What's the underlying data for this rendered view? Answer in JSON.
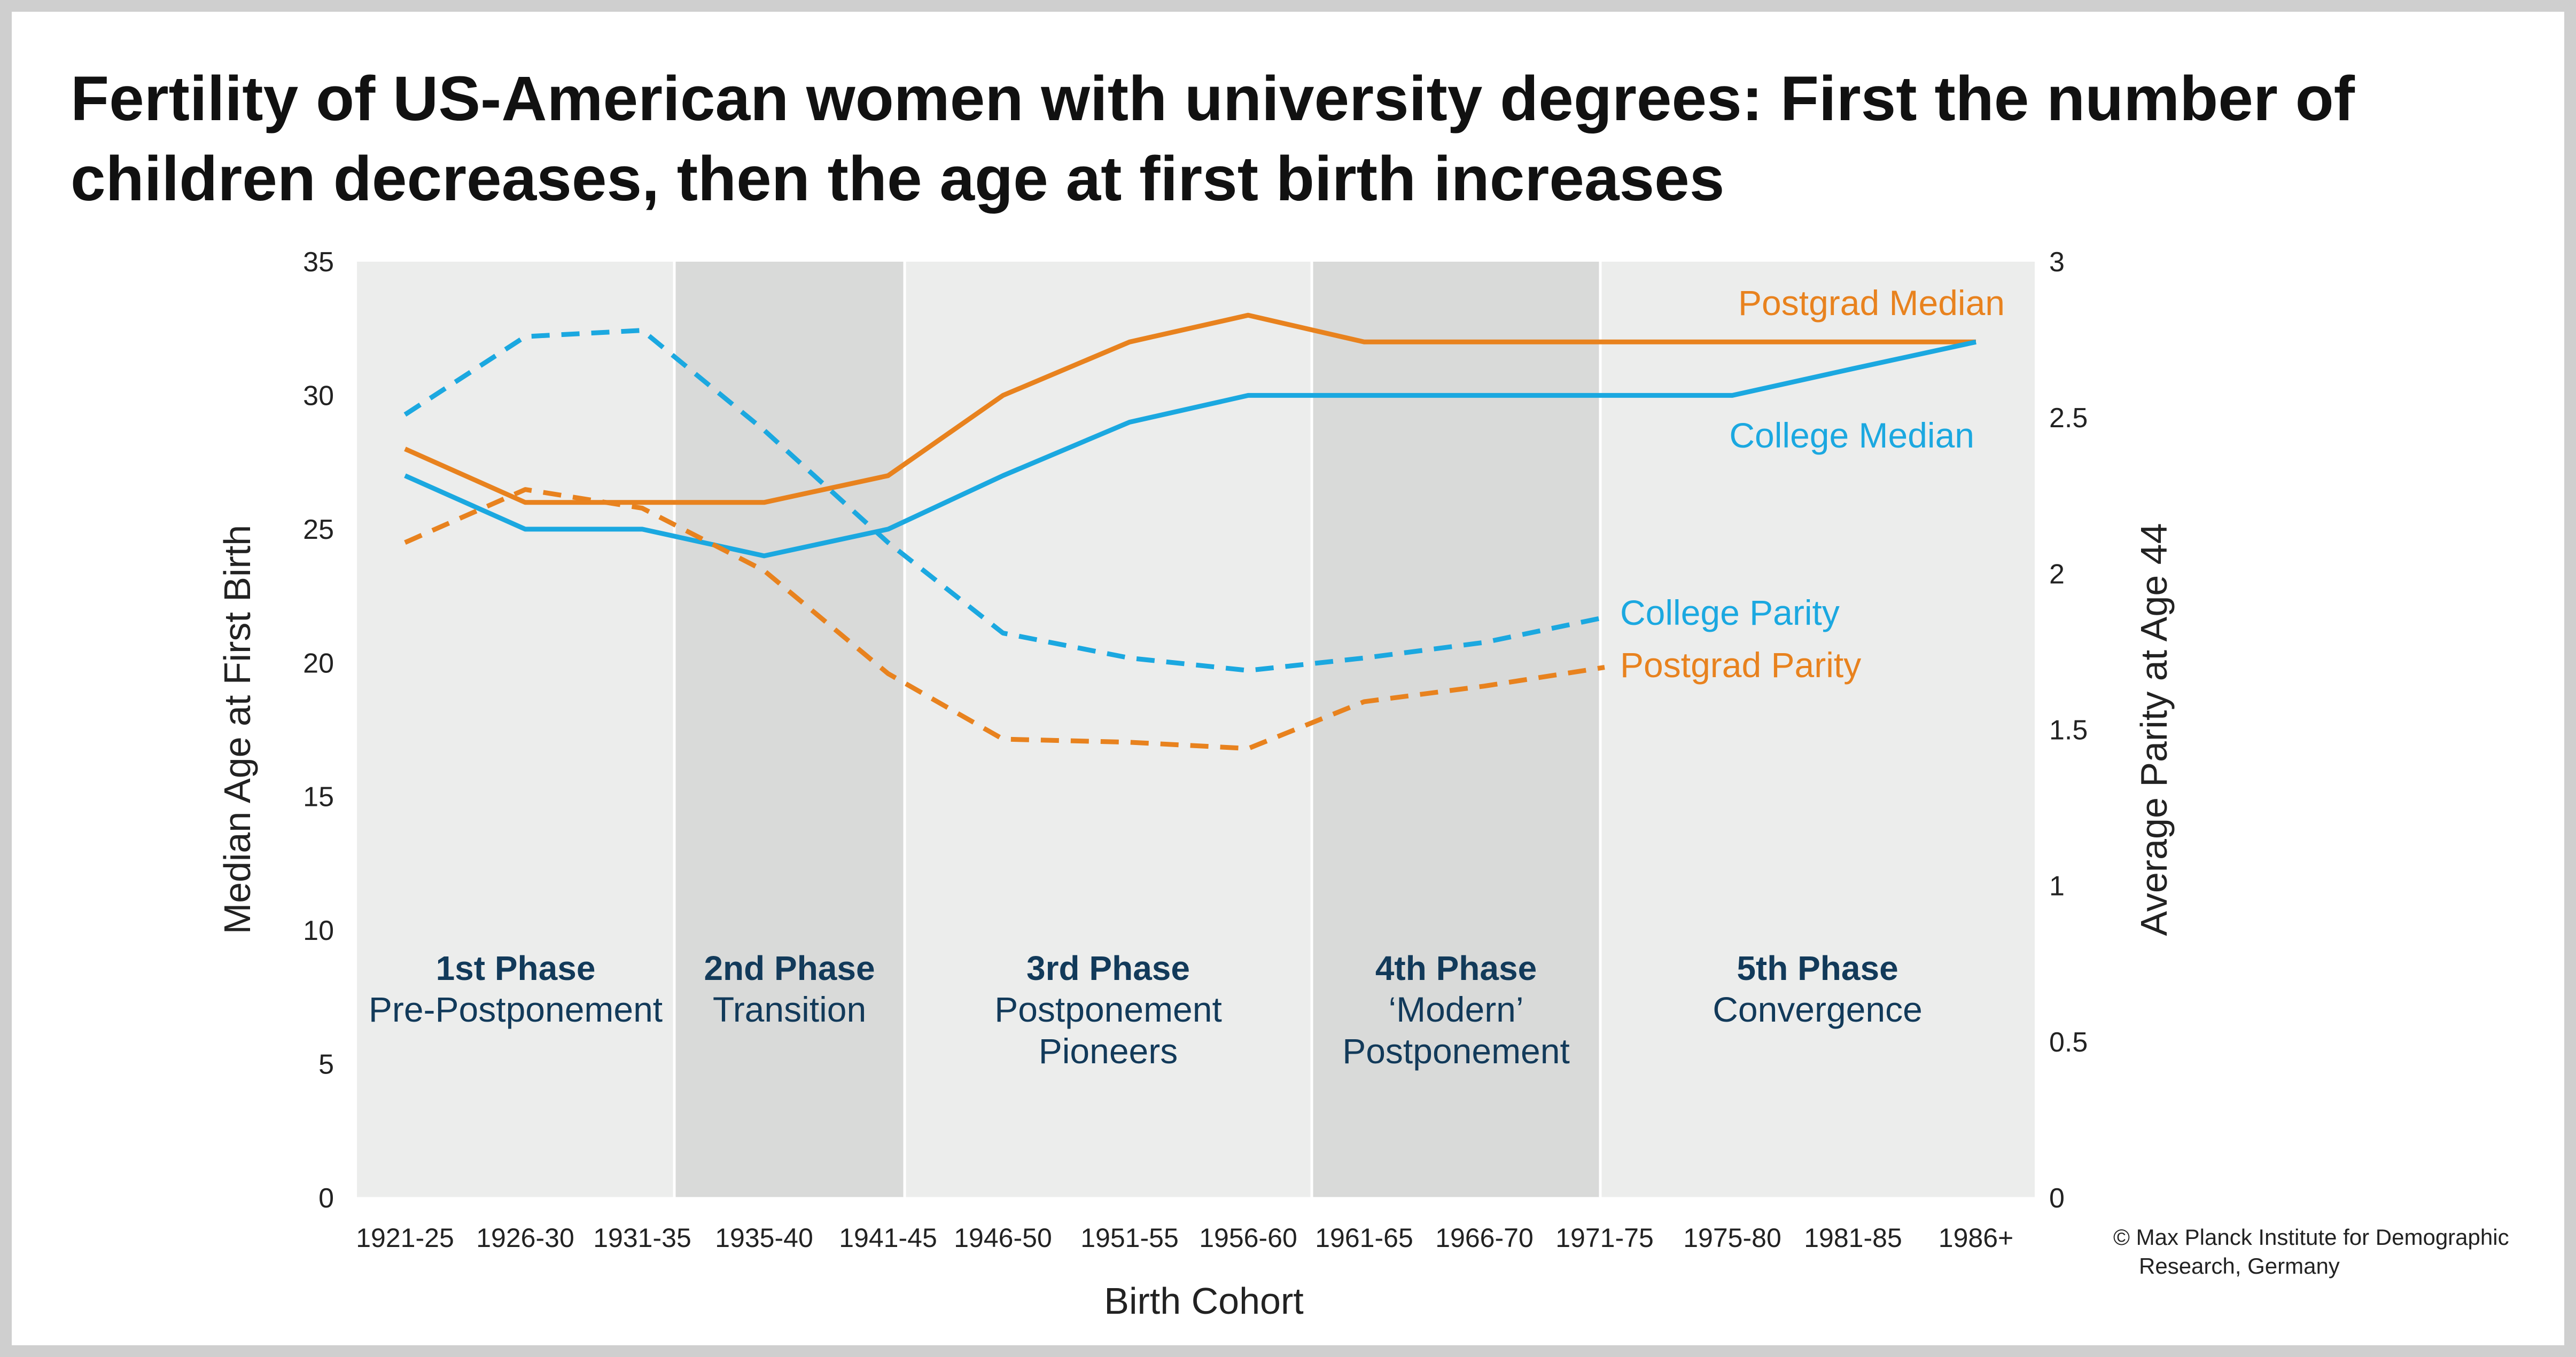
{
  "title": "Fertility of US-American women with university degrees: First the number of children decreases, then the age at first birth increases",
  "credit": [
    "© Max Planck Institute for Demographic",
    "Research, Germany"
  ],
  "chart_data": {
    "type": "line",
    "title": "Fertility of US-American women with university degrees: First the number of children decreases, then the age at first birth increases",
    "xlabel": "Birth Cohort",
    "ylabel_left": "Median Age at First Birth",
    "ylabel_right": "Average Parity at Age 44",
    "categories": [
      "1921-25",
      "1926-30",
      "1931-35",
      "1935-40",
      "1941-45",
      "1946-50",
      "1951-55",
      "1956-60",
      "1961-65",
      "1966-70",
      "1971-75",
      "1975-80",
      "1981-85",
      "1986+"
    ],
    "y_left": {
      "range": [
        0,
        35
      ],
      "ticks": [
        0,
        5,
        10,
        15,
        20,
        25,
        30,
        35
      ]
    },
    "y_right": {
      "range": [
        0,
        3
      ],
      "ticks": [
        "0",
        "0.5",
        "1",
        "1.5",
        "2",
        "2.5",
        "3"
      ]
    },
    "grid": false,
    "series": [
      {
        "name": "Postgrad Median",
        "axis": "left",
        "style": "solid",
        "color": "#E8821E",
        "values": [
          28,
          26,
          26,
          26,
          27,
          30,
          32,
          33,
          32,
          32,
          32,
          32,
          32,
          32
        ]
      },
      {
        "name": "College Median",
        "axis": "left",
        "style": "solid",
        "color": "#1BA8E0",
        "values": [
          27,
          25,
          25,
          24,
          25,
          27,
          29,
          30,
          30,
          30,
          30,
          30,
          31,
          32
        ]
      },
      {
        "name": "College Parity",
        "axis": "right",
        "style": "dashed",
        "color": "#1BA8E0",
        "values": [
          2.51,
          2.76,
          2.78,
          2.46,
          2.1,
          1.81,
          1.73,
          1.69,
          1.73,
          1.78,
          1.86,
          null,
          null,
          null
        ]
      },
      {
        "name": "Postgrad Parity",
        "axis": "right",
        "style": "dashed",
        "color": "#E8821E",
        "values": [
          2.1,
          2.27,
          2.21,
          2.01,
          1.68,
          1.47,
          1.46,
          1.44,
          1.59,
          1.64,
          1.7,
          null,
          null,
          null
        ]
      }
    ],
    "phases": [
      {
        "name": "1st Phase",
        "desc": [
          "Pre-Postponement"
        ],
        "shade": "light"
      },
      {
        "name": "2nd Phase",
        "desc": [
          "Transition"
        ],
        "shade": "dark"
      },
      {
        "name": "3rd Phase",
        "desc": [
          "Postponement",
          "Pioneers"
        ],
        "shade": "light"
      },
      {
        "name": "4th Phase",
        "desc": [
          "‘Modern’",
          "Postponement"
        ],
        "shade": "dark"
      },
      {
        "name": "5th Phase",
        "desc": [
          "Convergence"
        ],
        "shade": "light"
      }
    ],
    "colors": {
      "orange": "#E8821E",
      "blue": "#1BA8E0",
      "phase_text": "#123A5A",
      "band_light": "#ECEDEC",
      "band_dark": "#D9DAD9"
    }
  }
}
